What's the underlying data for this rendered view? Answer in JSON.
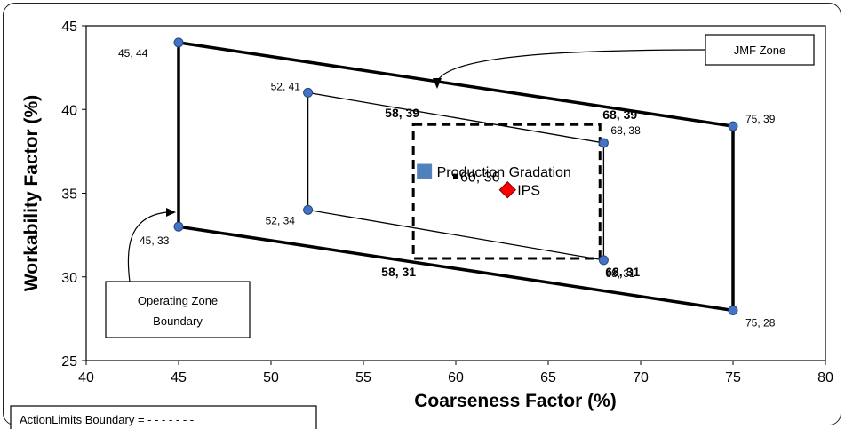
{
  "chart_data": {
    "type": "scatter",
    "xlabel": "Coarseness Factor (%)",
    "ylabel": "Workability Factor (%)",
    "xlim": [
      40,
      80
    ],
    "ylim": [
      25,
      45
    ],
    "x_ticks": [
      40,
      45,
      50,
      55,
      60,
      65,
      70,
      75,
      80
    ],
    "y_ticks": [
      25,
      30,
      35,
      40,
      45
    ],
    "grid": false,
    "operating_zone": {
      "points": [
        {
          "x": 45,
          "y": 44,
          "label": "45, 44"
        },
        {
          "x": 75,
          "y": 39,
          "label": "75, 39"
        },
        {
          "x": 75,
          "y": 28,
          "label": "75, 28"
        },
        {
          "x": 45,
          "y": 33,
          "label": "45, 33"
        }
      ],
      "color": "#000000"
    },
    "jmf_zone": {
      "points": [
        {
          "x": 52,
          "y": 41,
          "label": "52, 41"
        },
        {
          "x": 68,
          "y": 38,
          "label": "68, 38"
        },
        {
          "x": 68,
          "y": 31,
          "label": "68, 31"
        },
        {
          "x": 52,
          "y": 34,
          "label": "52, 34"
        }
      ]
    },
    "action_limits": {
      "points": [
        {
          "x": 57.7,
          "y": 39.1,
          "label": "58, 39"
        },
        {
          "x": 67.8,
          "y": 39.1,
          "label": "68, 39"
        },
        {
          "x": 67.8,
          "y": 31.1,
          "label": "68, 31"
        },
        {
          "x": 57.7,
          "y": 31.1,
          "label": "58, 31"
        }
      ]
    },
    "marker_color": "#4472c4",
    "series": [
      {
        "name": "Production Gradation",
        "marker": "square",
        "color": "#4f81bd",
        "points": [
          {
            "x": 58.3,
            "y": 36.3
          }
        ]
      },
      {
        "name": "IPS",
        "marker": "diamond",
        "color": "#ff0000",
        "points": [
          {
            "x": 62.8,
            "y": 35.2
          }
        ]
      },
      {
        "marker": "small-square",
        "color": "#000000",
        "points": [
          {
            "x": 60,
            "y": 36,
            "label": "60, 36"
          }
        ]
      }
    ],
    "annotations": {
      "jmf_zone": "JMF Zone",
      "operating_zone_line1": "Operating Zone",
      "operating_zone_line2": "Boundary",
      "action_limits": "ActionLimits Boundary = - - - - - - -"
    }
  }
}
